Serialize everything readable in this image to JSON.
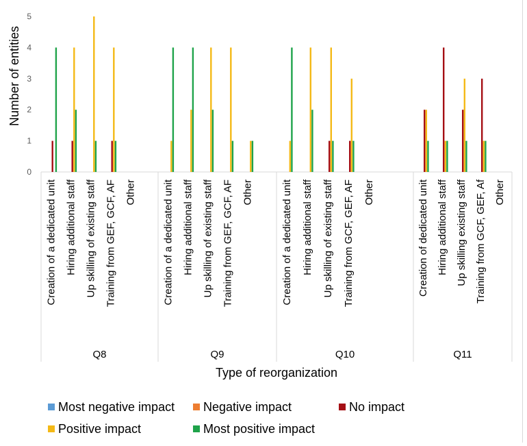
{
  "chart_data": {
    "type": "bar",
    "xlabel": "Type of reorganization",
    "ylabel": "Number of entities",
    "ylim": [
      0,
      5
    ],
    "y_ticks": [
      "0",
      "1",
      "2",
      "3",
      "4",
      "5"
    ],
    "grid": false,
    "legend_position": "bottom",
    "groups": [
      {
        "label": "Q8",
        "categories": [
          "Creation of a dedicated unit",
          "Hiring additional staff",
          "Up skilling of existing staff",
          "Training from GEF, GCF, AF",
          "Other"
        ]
      },
      {
        "label": "Q9",
        "categories": [
          "Creation of a dedicated unit",
          "Hiring additional staff",
          "Up skilling of existing staff",
          "Training from GEF, GCF, AF",
          "Other"
        ]
      },
      {
        "label": "Q10",
        "categories": [
          "Creation of a dedicated unit",
          "Hiring additional staff",
          "Up skilling of existing staff",
          "Training from GCF, GEF, AF",
          "Other"
        ]
      },
      {
        "label": "Q11",
        "categories": [
          "Creation of dedicated unit",
          "Hiring additional staff",
          "Up skilling existing staff",
          "Training from GCF, GEF, Af",
          "Other"
        ]
      }
    ],
    "series": [
      {
        "name": "Most negative impact",
        "color": "#5b9bd5",
        "values": [
          [
            0,
            0,
            0,
            0,
            0
          ],
          [
            0,
            0,
            0,
            0,
            0
          ],
          [
            0,
            0,
            0,
            0,
            0
          ],
          [
            0,
            0,
            0,
            0,
            0
          ]
        ]
      },
      {
        "name": "Negative impact",
        "color": "#ed7d31",
        "values": [
          [
            0,
            0,
            0,
            0,
            0
          ],
          [
            0,
            0,
            0,
            0,
            0
          ],
          [
            0,
            0,
            0,
            0,
            0
          ],
          [
            0,
            0,
            0,
            0,
            0
          ]
        ]
      },
      {
        "name": "No impact",
        "color": "#a50f15",
        "values": [
          [
            1,
            1,
            0,
            1,
            0
          ],
          [
            0,
            0,
            0,
            0,
            0
          ],
          [
            0,
            0,
            1,
            1,
            0
          ],
          [
            2,
            4,
            2,
            3,
            0
          ]
        ]
      },
      {
        "name": "Positive impact",
        "color": "#f4b916",
        "values": [
          [
            0,
            4,
            5,
            4,
            0
          ],
          [
            1,
            2,
            4,
            4,
            1
          ],
          [
            1,
            4,
            4,
            3,
            0
          ],
          [
            2,
            1,
            3,
            1,
            0
          ]
        ]
      },
      {
        "name": "Most positive impact",
        "color": "#1fa34a",
        "values": [
          [
            4,
            2,
            1,
            1,
            0
          ],
          [
            4,
            4,
            2,
            1,
            1
          ],
          [
            4,
            2,
            1,
            1,
            0
          ],
          [
            1,
            1,
            1,
            1,
            0
          ]
        ]
      }
    ]
  }
}
